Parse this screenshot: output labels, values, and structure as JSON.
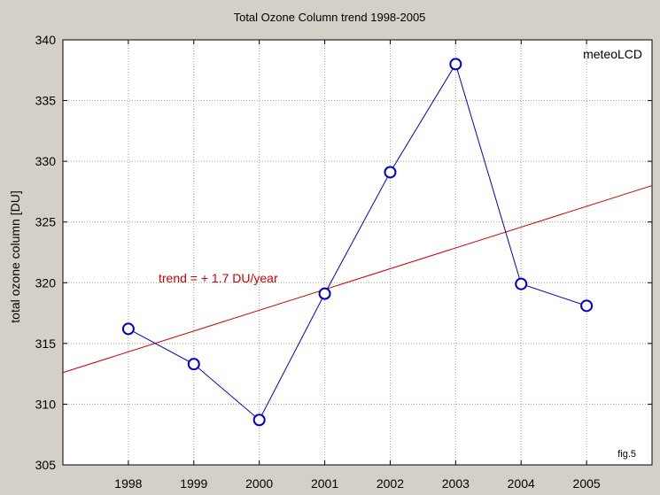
{
  "chart_data": {
    "type": "line",
    "title": "Total Ozone Column trend 1998-2005",
    "xlabel": "",
    "ylabel": "total ozone column [DU]",
    "xlim": [
      1997.0,
      2006.0
    ],
    "ylim": [
      305,
      340
    ],
    "x_ticks": [
      1998,
      1999,
      2000,
      2001,
      2002,
      2003,
      2004,
      2005
    ],
    "y_ticks": [
      305,
      310,
      315,
      320,
      325,
      330,
      335,
      340
    ],
    "grid": true,
    "series": [
      {
        "x": [
          1998,
          1999,
          2000,
          2001,
          2002,
          2003,
          2004,
          2005
        ],
        "values": [
          316.2,
          313.3,
          308.7,
          319.1,
          329.1,
          338.0,
          319.9,
          318.1
        ],
        "color": "#0000cc",
        "marker": "open-circle"
      }
    ],
    "trend_line": {
      "x": [
        1997.0,
        2006.0
      ],
      "values": [
        312.6,
        328.0
      ],
      "color": "#cc0000"
    },
    "annotations": {
      "trend_label": "trend = + 1.7 DU/year",
      "brand": "meteoLCD",
      "figure": "fig.5"
    },
    "colors": {
      "background": "#d4d0c8",
      "plot_area": "#ffffff",
      "grid": "#a0a0a0"
    }
  }
}
